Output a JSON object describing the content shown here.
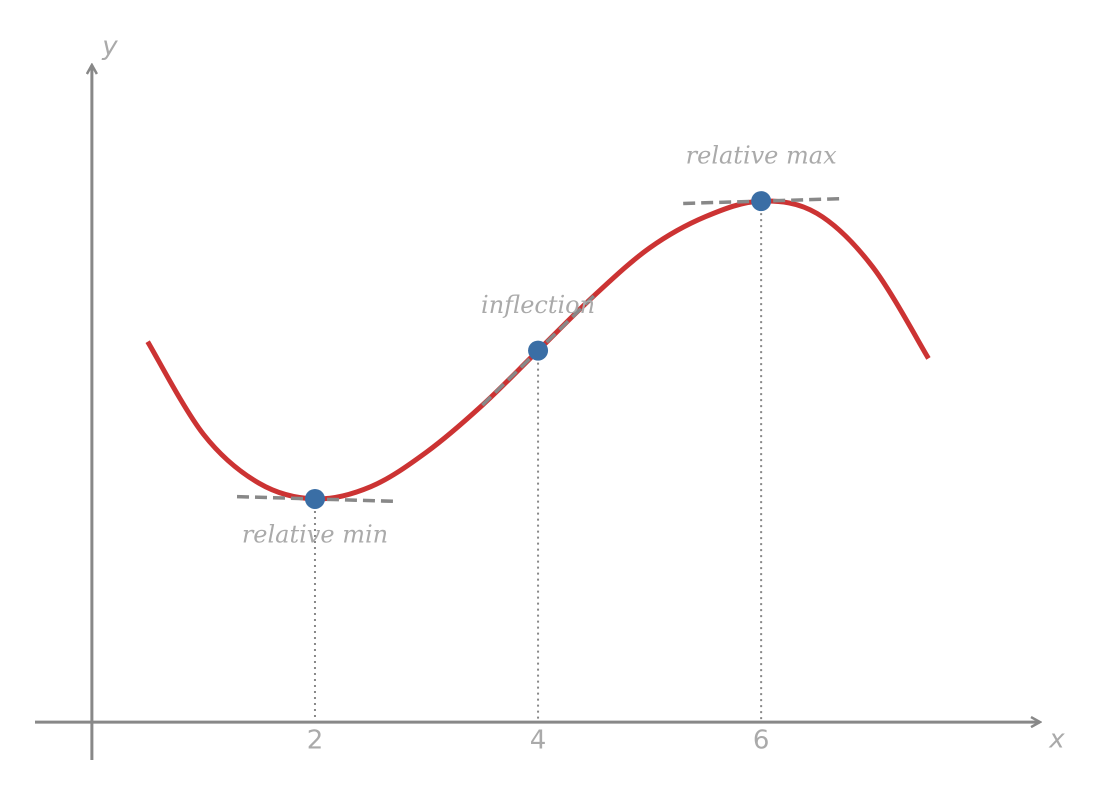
{
  "chart_data": {
    "type": "line",
    "x_label": "x",
    "y_label": "y",
    "xlim": [
      -0.51,
      8.5
    ],
    "ylim": [
      -0.34,
      5.89
    ],
    "xticks": [
      2,
      4,
      6
    ],
    "series": [
      {
        "color": "#cc3333",
        "x": [
          0.5,
          1,
          1.5,
          2,
          2.5,
          3,
          3.5,
          4,
          4.5,
          5,
          5.5,
          6,
          6.5,
          7,
          7.5
        ],
        "values": [
          3.41,
          2.58,
          2.14,
          2.0,
          2.11,
          2.42,
          2.84,
          3.33,
          3.82,
          4.25,
          4.53,
          4.67,
          4.56,
          4.08,
          3.26
        ]
      }
    ],
    "points": {
      "color": "#3a6ea5",
      "x": [
        2,
        4,
        6
      ],
      "values": [
        2.0,
        3.33,
        4.67
      ],
      "labels": [
        "relative min",
        "inflection",
        "relative max"
      ]
    }
  }
}
